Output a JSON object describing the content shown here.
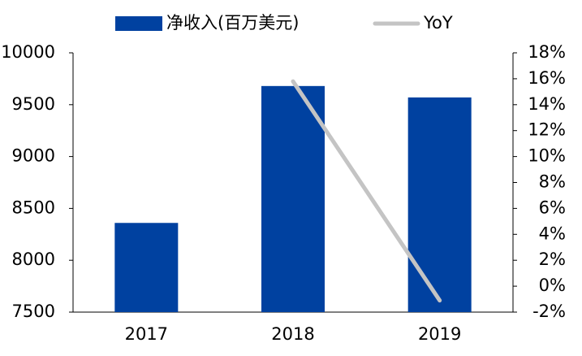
{
  "chart_data": {
    "type": "bar",
    "categories": [
      "2017",
      "2018",
      "2019"
    ],
    "series": [
      {
        "name": "净收入(百万美元)",
        "type": "bar",
        "color": "#0041a0",
        "values": [
          8360,
          9680,
          9570
        ]
      },
      {
        "name": "YoY",
        "type": "line",
        "axis": "y2",
        "color": "#c4c4c4",
        "values": [
          null,
          15.8,
          -1.1
        ]
      }
    ],
    "ylim": [
      7500,
      10000
    ],
    "yticks": [
      7500,
      8000,
      8500,
      9000,
      9500,
      10000
    ],
    "y2lim": [
      -2,
      18
    ],
    "y2ticks": [
      {
        "value": -2,
        "label": "-2%"
      },
      {
        "value": 0,
        "label": "0%"
      },
      {
        "value": 2,
        "label": "2%"
      },
      {
        "value": 4,
        "label": "4%"
      },
      {
        "value": 6,
        "label": "6%"
      },
      {
        "value": 8,
        "label": "8%"
      },
      {
        "value": 10,
        "label": "10%"
      },
      {
        "value": 12,
        "label": "12%"
      },
      {
        "value": 14,
        "label": "14%"
      },
      {
        "value": 16,
        "label": "16%"
      },
      {
        "value": 18,
        "label": "18%"
      }
    ],
    "legend": "top",
    "grid": false
  }
}
